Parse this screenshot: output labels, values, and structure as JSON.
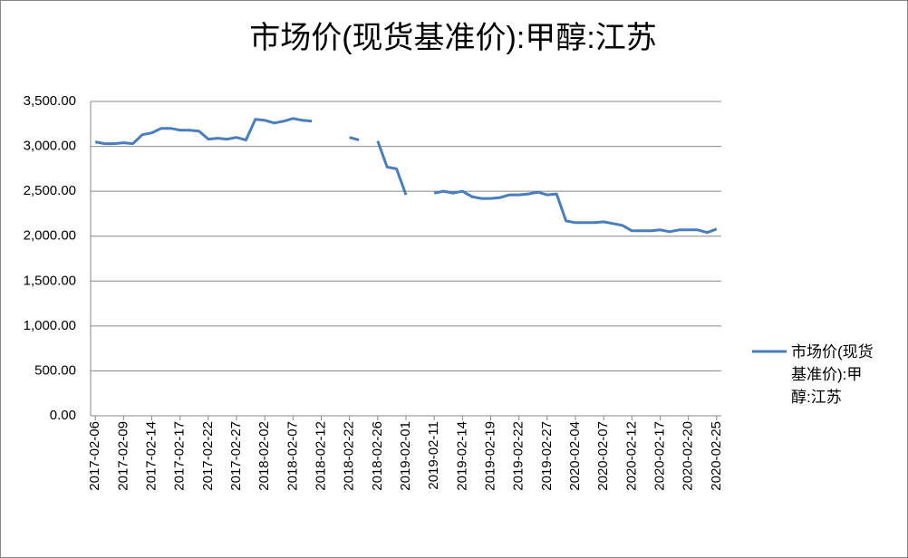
{
  "chart_data": {
    "type": "line",
    "title": "市场价(现货基准价):甲醇:江苏",
    "categories": [
      "2017-02-06",
      null,
      null,
      "2017-02-09",
      null,
      null,
      "2017-02-14",
      null,
      null,
      "2017-02-17",
      null,
      null,
      "2017-02-22",
      null,
      null,
      "2017-02-27",
      null,
      null,
      "2018-02-02",
      null,
      null,
      "2018-02-07",
      null,
      null,
      "2018-02-12",
      null,
      null,
      "2018-02-22",
      null,
      null,
      "2018-02-26",
      null,
      null,
      "2019-02-01",
      null,
      null,
      "2019-02-11",
      null,
      null,
      "2019-02-14",
      null,
      null,
      "2019-02-19",
      null,
      null,
      "2019-02-22",
      null,
      null,
      "2019-02-27",
      null,
      null,
      "2020-02-04",
      null,
      null,
      "2020-02-07",
      null,
      null,
      "2020-02-12",
      null,
      null,
      "2020-02-17",
      null,
      null,
      "2020-02-20",
      null,
      null,
      "2020-02-25"
    ],
    "series": [
      {
        "name": "市场价(现货基准价):甲醇:江苏",
        "color": "#4a7ebb",
        "values": [
          3050,
          3030,
          3030,
          3040,
          3030,
          3130,
          3150,
          3200,
          3200,
          3180,
          3180,
          3170,
          3080,
          3090,
          3080,
          3100,
          3070,
          3300,
          3290,
          3260,
          3280,
          3310,
          3290,
          3280,
          null,
          null,
          null,
          3100,
          3070,
          null,
          3060,
          2770,
          2750,
          2460,
          null,
          null,
          2480,
          2500,
          2480,
          2500,
          2440,
          2420,
          2420,
          2430,
          2460,
          2460,
          2470,
          2490,
          2460,
          2470,
          2170,
          2150,
          2150,
          2150,
          2160,
          2140,
          2120,
          2060,
          2060,
          2060,
          2070,
          2050,
          2070,
          2070,
          2070,
          2040,
          2080
        ]
      }
    ],
    "ylim": [
      0,
      3500
    ],
    "yticks": [
      {
        "value": 0,
        "label": "0.00"
      },
      {
        "value": 500,
        "label": "500.00"
      },
      {
        "value": 1000,
        "label": "1,000.00"
      },
      {
        "value": 1500,
        "label": "1,500.00"
      },
      {
        "value": 2000,
        "label": "2,000.00"
      },
      {
        "value": 2500,
        "label": "2,500.00"
      },
      {
        "value": 3000,
        "label": "3,000.00"
      },
      {
        "value": 3500,
        "label": "3,500.00"
      }
    ],
    "grid": true,
    "legend": "right"
  }
}
